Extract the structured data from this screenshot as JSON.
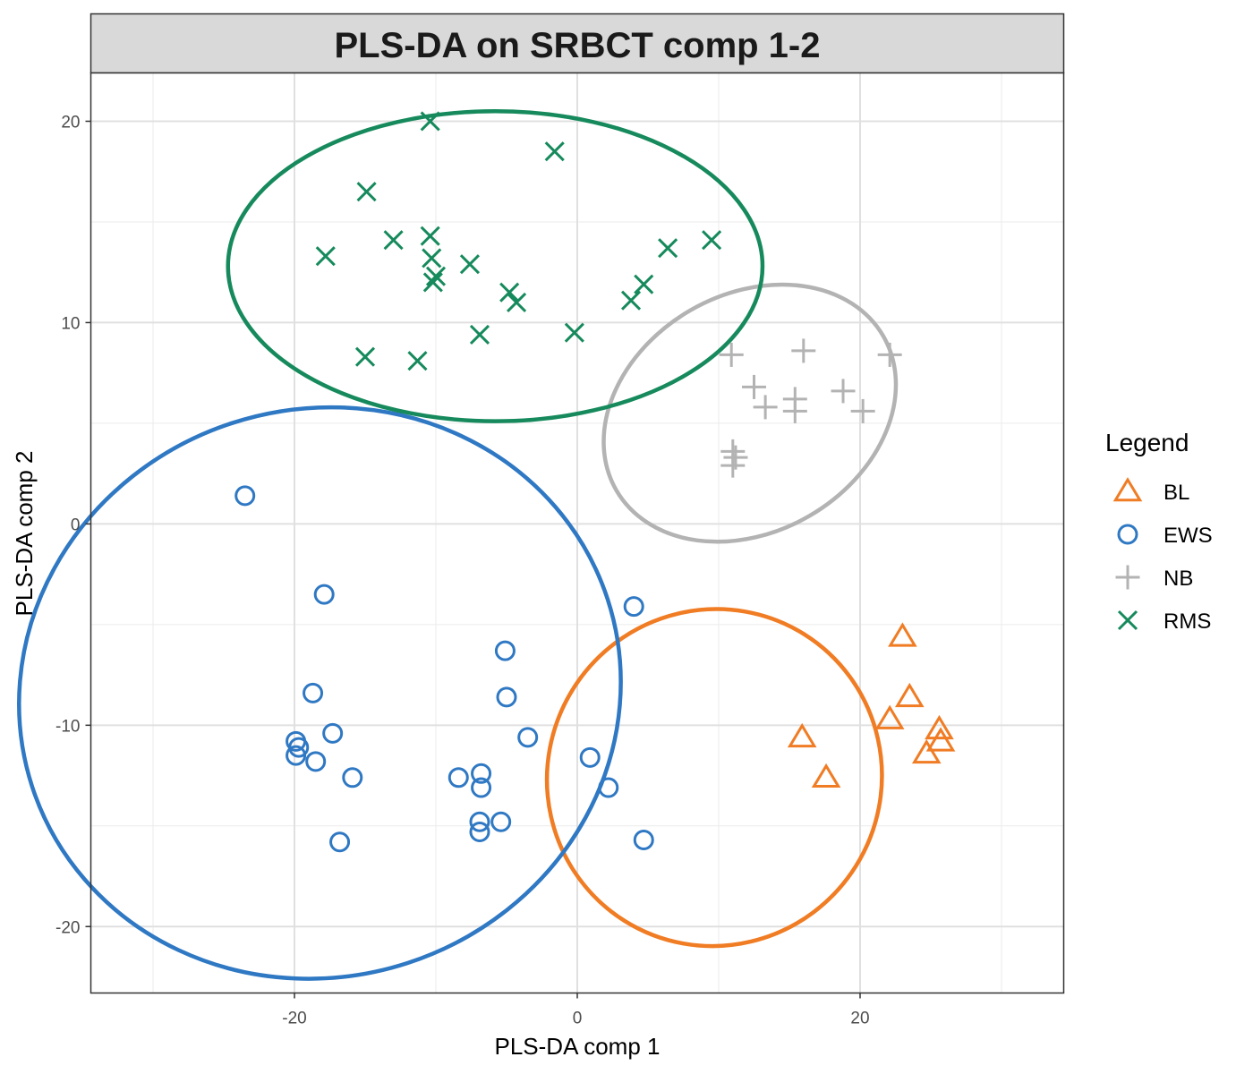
{
  "chart_data": {
    "type": "scatter",
    "title": "PLS-DA on SRBCT comp 1-2",
    "xlabel": "PLS-DA comp 1",
    "ylabel": "PLS-DA comp 2",
    "xlim": [
      -34.4,
      34.4
    ],
    "ylim": [
      -23.3,
      22.4
    ],
    "xticks": [
      -20,
      0,
      20
    ],
    "yticks": [
      20,
      10,
      0,
      -10,
      -20
    ],
    "grid": true,
    "legend_title": "Legend",
    "legend_position": "right",
    "series": [
      {
        "name": "BL",
        "color": "#f07c24",
        "marker": "triangle",
        "points": [
          [
            15.9,
            -10.6
          ],
          [
            17.6,
            -12.6
          ],
          [
            23.0,
            -5.6
          ],
          [
            23.5,
            -8.6
          ],
          [
            22.1,
            -9.7
          ],
          [
            25.6,
            -10.2
          ],
          [
            25.7,
            -10.8
          ],
          [
            24.7,
            -11.4
          ]
        ],
        "ellipse": {
          "center": [
            9.7,
            -12.6
          ],
          "rx": 11.8,
          "ry": 8.4,
          "angle_deg": 32
        }
      },
      {
        "name": "EWS",
        "color": "#2f78c3",
        "marker": "circle",
        "points": [
          [
            -23.5,
            1.4
          ],
          [
            -17.9,
            -3.5
          ],
          [
            -18.7,
            -8.4
          ],
          [
            -17.3,
            -10.4
          ],
          [
            -19.9,
            -10.8
          ],
          [
            -19.7,
            -11.1
          ],
          [
            -19.9,
            -11.5
          ],
          [
            -18.5,
            -11.8
          ],
          [
            -15.9,
            -12.6
          ],
          [
            -16.8,
            -15.8
          ],
          [
            -8.4,
            -12.6
          ],
          [
            -6.8,
            -12.4
          ],
          [
            -6.8,
            -13.1
          ],
          [
            -5.1,
            -6.3
          ],
          [
            -5.0,
            -8.6
          ],
          [
            -3.5,
            -10.6
          ],
          [
            -6.9,
            -14.8
          ],
          [
            -6.9,
            -15.3
          ],
          [
            -5.4,
            -14.8
          ],
          [
            0.9,
            -11.6
          ],
          [
            2.2,
            -13.1
          ],
          [
            4.0,
            -4.1
          ],
          [
            4.7,
            -15.7
          ]
        ],
        "ellipse": {
          "center": [
            -18.2,
            -8.4
          ],
          "rx": 21.4,
          "ry": 14.1,
          "angle_deg": -18
        }
      },
      {
        "name": "NB",
        "color": "#b3b3b3",
        "marker": "plus",
        "points": [
          [
            10.9,
            8.4
          ],
          [
            12.5,
            6.8
          ],
          [
            13.3,
            5.8
          ],
          [
            15.4,
            6.2
          ],
          [
            15.4,
            5.6
          ],
          [
            16.0,
            8.6
          ],
          [
            18.8,
            6.6
          ],
          [
            20.2,
            5.6
          ],
          [
            22.1,
            8.4
          ],
          [
            11.0,
            3.6
          ],
          [
            11.2,
            3.3
          ],
          [
            11.0,
            2.9
          ]
        ],
        "ellipse": {
          "center": [
            12.2,
            5.5
          ],
          "rx": 10.9,
          "ry": 5.9,
          "angle_deg": -30
        }
      },
      {
        "name": "RMS",
        "color": "#168a5c",
        "marker": "cross",
        "points": [
          [
            -10.4,
            20.0
          ],
          [
            -1.6,
            18.5
          ],
          [
            -14.9,
            16.5
          ],
          [
            -13.0,
            14.1
          ],
          [
            -10.4,
            14.3
          ],
          [
            -10.3,
            13.2
          ],
          [
            -10.0,
            12.3
          ],
          [
            -10.2,
            12.0
          ],
          [
            -7.6,
            12.9
          ],
          [
            -17.8,
            13.3
          ],
          [
            -4.8,
            11.5
          ],
          [
            -4.3,
            11.0
          ],
          [
            -15.0,
            8.3
          ],
          [
            -11.3,
            8.1
          ],
          [
            -6.9,
            9.4
          ],
          [
            -0.2,
            9.5
          ],
          [
            3.8,
            11.1
          ],
          [
            4.7,
            11.9
          ],
          [
            6.4,
            13.7
          ],
          [
            9.5,
            14.1
          ]
        ],
        "ellipse": {
          "center": [
            -5.8,
            12.8
          ],
          "rx": 18.9,
          "ry": 7.7,
          "angle_deg": 0
        }
      }
    ]
  }
}
